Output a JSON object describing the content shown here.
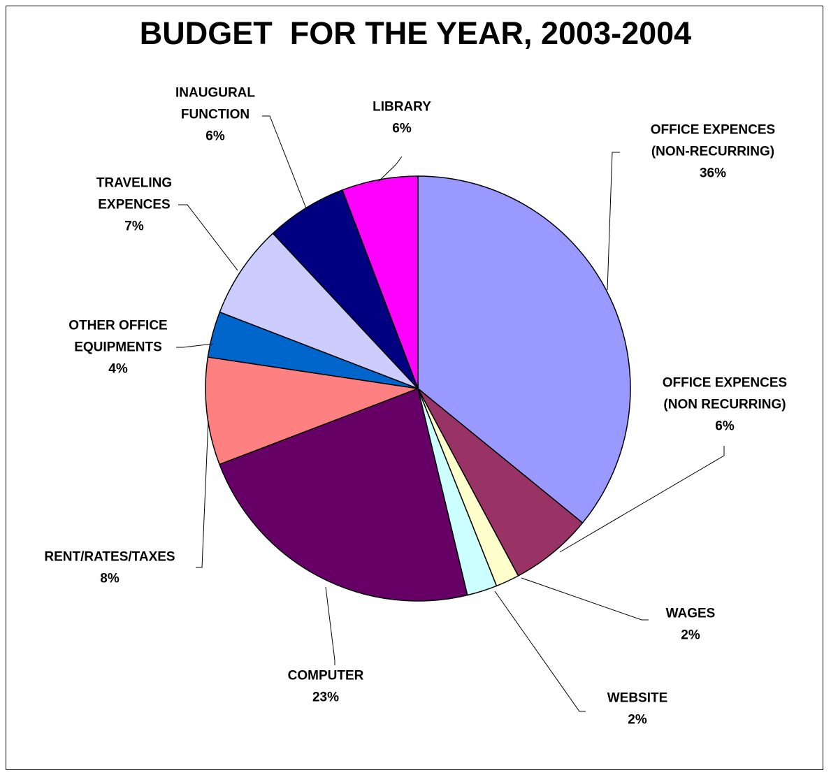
{
  "chart_data": {
    "type": "pie",
    "title": "BUDGET  FOR THE YEAR, 2003-2004",
    "slices": [
      {
        "label": [
          "OFFICE EXPENCES",
          "(NON-RECURRING)"
        ],
        "percent_label": "36%",
        "value": 36.0,
        "color": "#9999FF"
      },
      {
        "label": [
          "OFFICE EXPENCES",
          "(NON RECURRING)"
        ],
        "percent_label": "6%",
        "value": 6.3,
        "color": "#993366"
      },
      {
        "label": [
          "WAGES"
        ],
        "percent_label": "2%",
        "value": 1.8,
        "color": "#FFFFCC"
      },
      {
        "label": [
          "WEBSITE"
        ],
        "percent_label": "2%",
        "value": 2.3,
        "color": "#CCFFFF"
      },
      {
        "label": [
          "COMPUTER"
        ],
        "percent_label": "23%",
        "value": 23.0,
        "color": "#660066"
      },
      {
        "label": [
          "RENT/RATES/TAXES"
        ],
        "percent_label": "8%",
        "value": 8.2,
        "color": "#FF8080"
      },
      {
        "label": [
          "OTHER OFFICE",
          "EQUIPMENTS"
        ],
        "percent_label": "4%",
        "value": 3.5,
        "color": "#0066CC"
      },
      {
        "label": [
          "TRAVELING",
          "EXPENCES"
        ],
        "percent_label": "7%",
        "value": 7.2,
        "color": "#CCCCFF"
      },
      {
        "label": [
          "INAUGURAL",
          "FUNCTION"
        ],
        "percent_label": "6%",
        "value": 6.2,
        "color": "#000080"
      },
      {
        "label": [
          "LIBRARY"
        ],
        "percent_label": "6%",
        "value": 5.8,
        "color": "#FF00FF"
      }
    ]
  }
}
